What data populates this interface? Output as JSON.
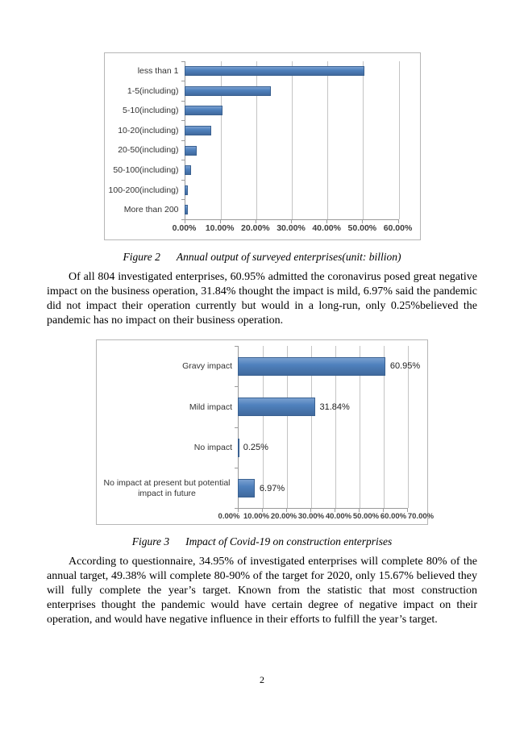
{
  "page": {
    "number": "2"
  },
  "figures": {
    "figure2": {
      "label": "Figure 2",
      "title": "Annual output of surveyed enterprises(unit: billion)"
    },
    "figure3": {
      "label": "Figure 3",
      "title": "Impact of Covid-19 on construction enterprises"
    }
  },
  "paragraphs": {
    "p1": "Of all 804 investigated enterprises, 60.95% admitted the coronavirus posed great negative impact on the business operation, 31.84% thought the impact is mild, 6.97% said the pandemic did not impact their operation currently but would in a long-run, only 0.25%believed the pandemic has no impact on their business operation.",
    "p2": "According to questionnaire, 34.95% of investigated enterprises will complete 80% of the annual target, 49.38% will complete 80-90% of the target for 2020, only 15.67% believed they will fully complete the year’s target. Known from the statistic that most construction enterprises thought the pandemic would have certain degree of negative impact on their operation, and would have negative influence in their efforts to fulfill the year’s target.",
    "body_804_note": "Of all 804 investigated enterprises"
  },
  "colors": {
    "bar_fill": "#4f81bd",
    "bar_border": "#3a6191",
    "gridline": "#c4c4c4",
    "axis_line": "#9a9a9a",
    "chart_border": "#b6b6b6",
    "text": "#000000"
  },
  "chart_data": [
    {
      "type": "bar",
      "orientation": "horizontal",
      "title": "Annual output of surveyed enterprises(unit: billion)",
      "categories": [
        "less than 1",
        "1-5(including)",
        "5-10(including)",
        "10-20(including)",
        "20-50(including)",
        "50-100(including)",
        "100-200(including)",
        "More than 200"
      ],
      "values": [
        50.5,
        24.4,
        10.7,
        7.5,
        3.5,
        2.0,
        1.0,
        1.0
      ],
      "unit": "%",
      "xlim": [
        0,
        60
      ],
      "x_tick_labels": [
        "0.00%",
        "10.00%",
        "20.00%",
        "30.00%",
        "40.00%",
        "50.00%",
        "60.00%"
      ],
      "grid": true,
      "legend": false,
      "data_labels": null
    },
    {
      "type": "bar",
      "orientation": "horizontal",
      "title": "Impact of Covid-19 on construction enterprises",
      "categories": [
        "Gravy impact",
        "Mild impact",
        "No impact",
        "No impact at present but potential impact in future"
      ],
      "values": [
        60.95,
        31.84,
        0.25,
        6.97
      ],
      "unit": "%",
      "xlim": [
        0,
        70
      ],
      "x_tick_labels": [
        "0.00%",
        "10.00%",
        "20.00%",
        "30.00%",
        "40.00%",
        "50.00%",
        "60.00%",
        "70.00%"
      ],
      "grid": true,
      "legend": false,
      "data_labels": [
        "60.95%",
        "31.84%",
        "0.25%",
        "6.97%"
      ]
    }
  ]
}
